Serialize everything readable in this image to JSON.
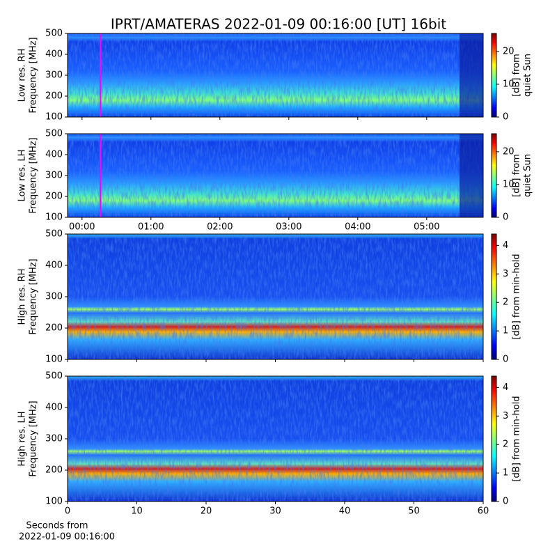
{
  "title": "IPRT/AMATERAS 2022-01-09 00:16:00 [UT]   16bit",
  "chart_data": [
    {
      "type": "spectrogram",
      "ylabel": [
        "Low res. RH",
        "Frequency [MHz]"
      ],
      "ylim": [
        100,
        500
      ],
      "yticks": [
        100,
        200,
        300,
        400,
        500
      ],
      "xlim": [
        -0.21,
        5.82
      ],
      "marker": 0.267,
      "marker_color": "#ff00ff",
      "colormap": "jet",
      "clim": [
        0,
        25.5
      ],
      "cticks": [
        0,
        10,
        20
      ],
      "clabel": [
        "[dB] from",
        "quiet Sun"
      ]
    },
    {
      "type": "spectrogram",
      "ylabel": [
        "Low res. LH",
        "Frequency [MHz]"
      ],
      "ylim": [
        100,
        500
      ],
      "yticks": [
        100,
        200,
        300,
        400,
        500
      ],
      "xlim": [
        -0.21,
        5.82
      ],
      "xticks": [
        {
          "value": 0,
          "label": "00:00"
        },
        {
          "value": 1,
          "label": "01:00"
        },
        {
          "value": 2,
          "label": "02:00"
        },
        {
          "value": 3,
          "label": "03:00"
        },
        {
          "value": 4,
          "label": "04:00"
        },
        {
          "value": 5,
          "label": "05:00"
        }
      ],
      "marker": 0.267,
      "marker_color": "#ff00ff",
      "colormap": "jet",
      "clim": [
        0,
        25.5
      ],
      "cticks": [
        0,
        10,
        20
      ],
      "clabel": [
        "[dB] from",
        "quiet Sun"
      ]
    },
    {
      "type": "spectrogram",
      "ylabel": [
        "High res. RH",
        "Frequency [MHz]"
      ],
      "ylim": [
        100,
        500
      ],
      "yticks": [
        100,
        200,
        300,
        400,
        500
      ],
      "xlim": [
        0,
        60
      ],
      "colormap": "jet",
      "clim": [
        0,
        4.4
      ],
      "cticks": [
        0,
        1,
        2,
        3,
        4
      ],
      "clabel": [
        "[dB] from min-hold"
      ]
    },
    {
      "type": "spectrogram",
      "ylabel": [
        "High res. LH",
        "Frequency [MHz]"
      ],
      "ylim": [
        100,
        500
      ],
      "yticks": [
        100,
        200,
        300,
        400,
        500
      ],
      "xlim": [
        0,
        60
      ],
      "xticks": [
        0,
        10,
        20,
        30,
        40,
        50,
        60
      ],
      "xlabel": [
        "Seconds from",
        "2022-01-09 00:16:00"
      ],
      "colormap": "jet",
      "clim": [
        0,
        4.4
      ],
      "cticks": [
        0,
        1,
        2,
        3,
        4
      ],
      "clabel": [
        "[dB] from min-hold"
      ]
    }
  ]
}
